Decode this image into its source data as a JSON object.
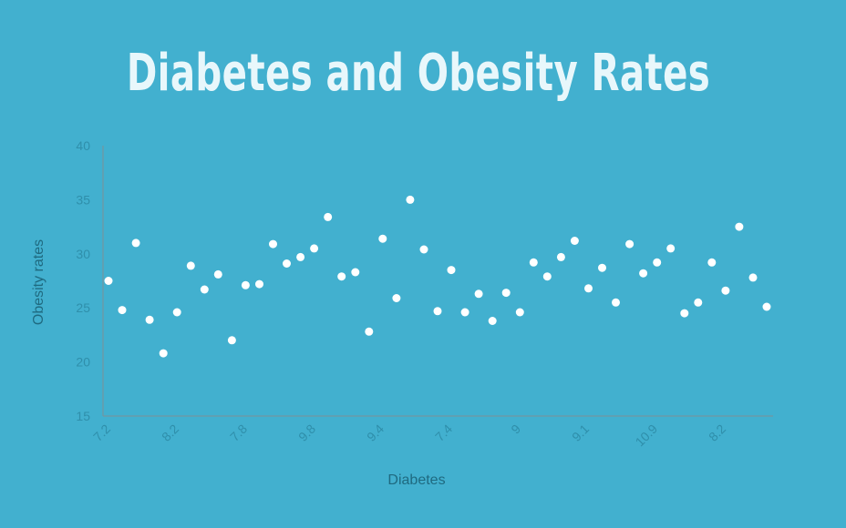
{
  "chart_data": {
    "type": "scatter",
    "title": "Diabetes and Obesity Rates",
    "xlabel": "Diabetes",
    "ylabel": "Obesity rates",
    "ylim": [
      15,
      40
    ],
    "yticks": [
      15,
      20,
      25,
      30,
      35,
      40
    ],
    "xtick_labels": [
      "7.2",
      "8.2",
      "7.8",
      "9.8",
      "9.4",
      "7.4",
      "9",
      "9.1",
      "10.9",
      "8.2"
    ],
    "grid": false,
    "legend": "none",
    "point_color": "#ffffff",
    "axis_color": "#6b9aa8",
    "series": [
      {
        "values": [
          27.5,
          24.8,
          31.0,
          23.9,
          20.8,
          24.6,
          28.9,
          26.7,
          28.1,
          22.0,
          27.1,
          27.2,
          30.9,
          29.1,
          29.7,
          30.5,
          33.4,
          27.9,
          28.3,
          22.8,
          31.4,
          25.9,
          35.0,
          30.4,
          24.7,
          28.5,
          24.6,
          26.3,
          23.8,
          26.4,
          24.6,
          29.2,
          27.9,
          29.7,
          31.2,
          26.8,
          28.7,
          25.5,
          30.9,
          28.2,
          29.2,
          30.5,
          24.5,
          25.5,
          29.2,
          26.6,
          32.5,
          27.8,
          25.1
        ]
      }
    ]
  }
}
